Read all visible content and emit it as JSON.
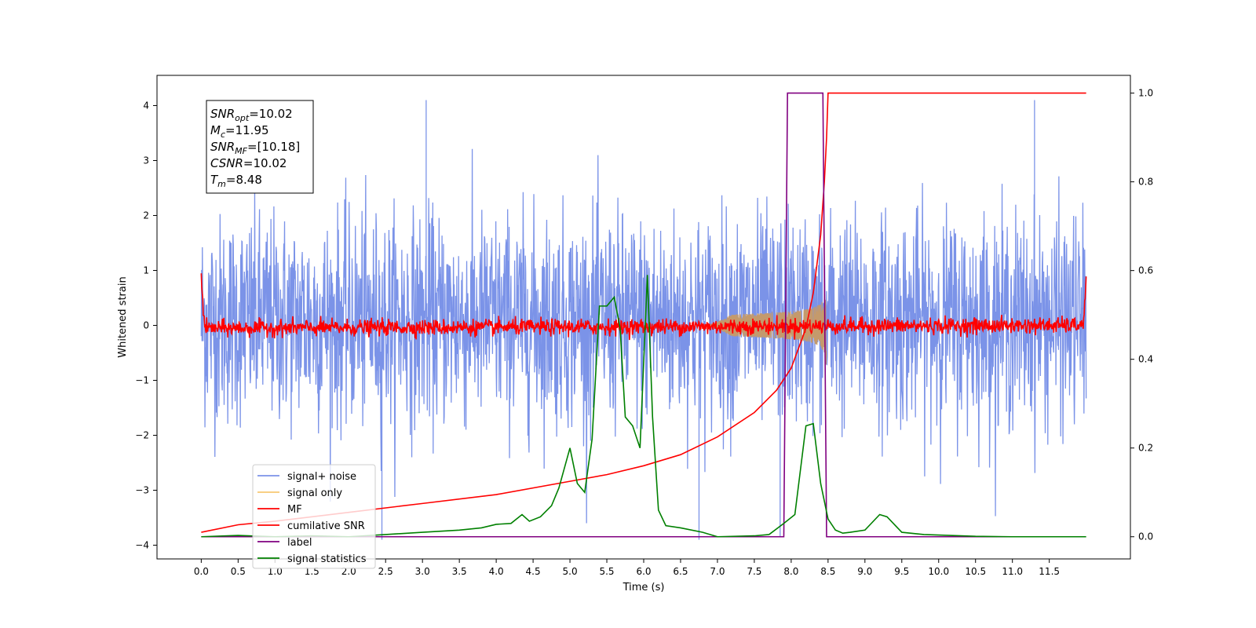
{
  "chart_data": {
    "type": "line",
    "xlabel": "Time (s)",
    "ylabel": "Whitened strain",
    "xlim": [
      -0.6,
      12.6
    ],
    "ylim_left": [
      -4.25,
      4.55
    ],
    "ylim_right": [
      -0.05,
      1.04
    ],
    "x_ticks": [
      "0.0",
      "0.5",
      "1.0",
      "1.5",
      "2.0",
      "2.5",
      "3.0",
      "3.5",
      "4.0",
      "4.5",
      "5.0",
      "5.5",
      "6.0",
      "6.5",
      "7.0",
      "7.5",
      "8.0",
      "8.5",
      "9.0",
      "9.5",
      "10.0",
      "10.5",
      "11.0",
      "11.5"
    ],
    "y_ticks_left": [
      "4",
      "3",
      "2",
      "1",
      "0",
      "−1",
      "−2",
      "−3",
      "−4"
    ],
    "y_ticks_right": [
      "1.0",
      "0.8",
      "0.6",
      "0.4",
      "0.2",
      "0.0"
    ],
    "annotation": [
      {
        "sym": "SNR",
        "sub": "opt",
        "val": "=10.02"
      },
      {
        "sym": "M",
        "sub": "c",
        "val": "=11.95"
      },
      {
        "sym": "SNR",
        "sub": "MF",
        "val": "=[10.18]"
      },
      {
        "sym": "CSNR",
        "sub": "",
        "val": "=10.02"
      },
      {
        "sym": "T",
        "sub": "m",
        "val": "=8.48"
      }
    ],
    "legend": {
      "placement": "lower-left",
      "entries": [
        {
          "label": "signal+ noise",
          "color": "#7b93e8"
        },
        {
          "label": "signal only",
          "color": "#f7c873"
        },
        {
          "label": "MF",
          "color": "#ff0000"
        },
        {
          "label": "cumilative SNR",
          "color": "#ff0000"
        },
        {
          "label": "label",
          "color": "#800080"
        },
        {
          "label": "signal statistics",
          "color": "#008000"
        }
      ]
    },
    "series": [
      {
        "name": "signal+ noise",
        "axis": "left",
        "color": "#7b93e8",
        "description_range": [
          0.0,
          12.0
        ],
        "envelope_typical": [
          -2.2,
          2.6
        ],
        "peaks": [
          [
            3.05,
            4.1
          ],
          [
            11.3,
            4.1
          ],
          [
            2.45,
            -3.9
          ],
          [
            6.75,
            -3.9
          ],
          [
            7.85,
            -3.85
          ]
        ]
      },
      {
        "name": "signal only",
        "axis": "left",
        "color": "#f7c873",
        "chirp_start": 6.9,
        "chirp_end": 8.48,
        "peak_amplitude": 0.85
      },
      {
        "name": "MF",
        "axis": "left",
        "color": "#ff0000",
        "x": [
          0.0,
          0.02,
          0.05,
          11.95,
          11.98,
          12.0
        ],
        "y": [
          1.0,
          0.4,
          -0.05,
          0.0,
          0.3,
          0.85
        ],
        "noise_amplitude": 0.12
      },
      {
        "name": "cumilative SNR",
        "axis": "right",
        "color": "#ff0000",
        "x": [
          0.0,
          0.5,
          1.0,
          2.0,
          3.0,
          4.0,
          5.0,
          5.5,
          6.0,
          6.5,
          7.0,
          7.5,
          7.8,
          8.0,
          8.2,
          8.3,
          8.4,
          8.45,
          8.48,
          8.5,
          12.0
        ],
        "y": [
          0.01,
          0.027,
          0.035,
          0.055,
          0.075,
          0.095,
          0.125,
          0.14,
          0.16,
          0.185,
          0.225,
          0.28,
          0.33,
          0.38,
          0.47,
          0.55,
          0.68,
          0.8,
          0.9,
          1.0,
          1.0
        ]
      },
      {
        "name": "label",
        "axis": "right",
        "color": "#800080",
        "x": [
          0.0,
          7.9,
          7.95,
          8.43,
          8.48,
          11.95
        ],
        "y": [
          0.0,
          0.0,
          1.0,
          1.0,
          0.0,
          0.0
        ]
      },
      {
        "name": "signal statistics",
        "axis": "right",
        "color": "#008000",
        "x": [
          0.0,
          0.5,
          1.0,
          1.5,
          2.0,
          2.5,
          3.0,
          3.5,
          3.8,
          4.0,
          4.2,
          4.35,
          4.45,
          4.6,
          4.75,
          4.85,
          5.0,
          5.1,
          5.2,
          5.3,
          5.4,
          5.5,
          5.6,
          5.68,
          5.75,
          5.85,
          5.95,
          6.05,
          6.12,
          6.2,
          6.3,
          6.5,
          6.8,
          7.0,
          7.5,
          7.7,
          7.9,
          8.05,
          8.2,
          8.3,
          8.4,
          8.5,
          8.6,
          8.7,
          8.8,
          9.0,
          9.2,
          9.3,
          9.5,
          9.8,
          10.5,
          11.0,
          12.0
        ],
        "y": [
          0.0,
          0.003,
          0.0,
          0.002,
          0.0,
          0.005,
          0.01,
          0.015,
          0.02,
          0.028,
          0.03,
          0.05,
          0.035,
          0.045,
          0.07,
          0.11,
          0.2,
          0.12,
          0.1,
          0.22,
          0.52,
          0.52,
          0.54,
          0.47,
          0.27,
          0.25,
          0.2,
          0.59,
          0.27,
          0.06,
          0.025,
          0.02,
          0.01,
          0.0,
          0.002,
          0.005,
          0.03,
          0.05,
          0.25,
          0.255,
          0.12,
          0.04,
          0.015,
          0.008,
          0.01,
          0.015,
          0.05,
          0.045,
          0.01,
          0.005,
          0.001,
          0.0,
          0.0
        ]
      }
    ]
  }
}
